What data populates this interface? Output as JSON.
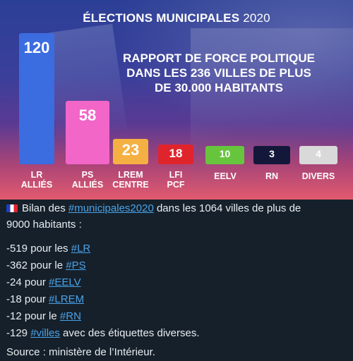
{
  "infographic": {
    "title_main": "ÉLECTIONS MUNICIPALES",
    "title_year": "2020",
    "subtitle_lines": [
      "RAPPORT DE FORCE POLITIQUE",
      "DANS LES 236 VILLES DE PLUS",
      "DE 30.000 HABITANTS"
    ],
    "bars": [
      {
        "value": "120",
        "label1": "LR",
        "label2": "ALLIÉS",
        "color": "#3b6ce0"
      },
      {
        "value": "58",
        "label1": "PS",
        "label2": "ALLIÉS",
        "color": "#f266c8"
      },
      {
        "value": "23",
        "label1": "LREM",
        "label2": "CENTRE",
        "color": "#f5b043"
      },
      {
        "value": "18",
        "label1": "LFI",
        "label2": "PCF",
        "color": "#e0242c"
      },
      {
        "value": "10",
        "label1": "EELV",
        "label2": "",
        "color": "#67c53d"
      },
      {
        "value": "3",
        "label1": "RN",
        "label2": "",
        "color": "#13183a"
      },
      {
        "value": "4",
        "label1": "DIVERS",
        "label2": "",
        "color": "#d9d9d9"
      }
    ]
  },
  "tweet": {
    "line1_pre": "Bilan des ",
    "line1_tag": "#municipales2020",
    "line1_post": " dans les 1064 villes de plus de",
    "line2": "9000 habitants :",
    "items": [
      {
        "pre": "-519 pour les ",
        "tag": "#LR",
        "post": ""
      },
      {
        "pre": "-362 pour le ",
        "tag": "#PS",
        "post": ""
      },
      {
        "pre": "-24 pour ",
        "tag": "#EELV",
        "post": ""
      },
      {
        "pre": "-18 pour ",
        "tag": "#LREM",
        "post": ""
      },
      {
        "pre": "-12 pour le ",
        "tag": "#RN",
        "post": ""
      },
      {
        "pre": "-129 ",
        "tag": "#villes",
        "post": " avec des étiquettes diverses."
      }
    ],
    "source": "Source : ministère de l’Intérieur."
  }
}
